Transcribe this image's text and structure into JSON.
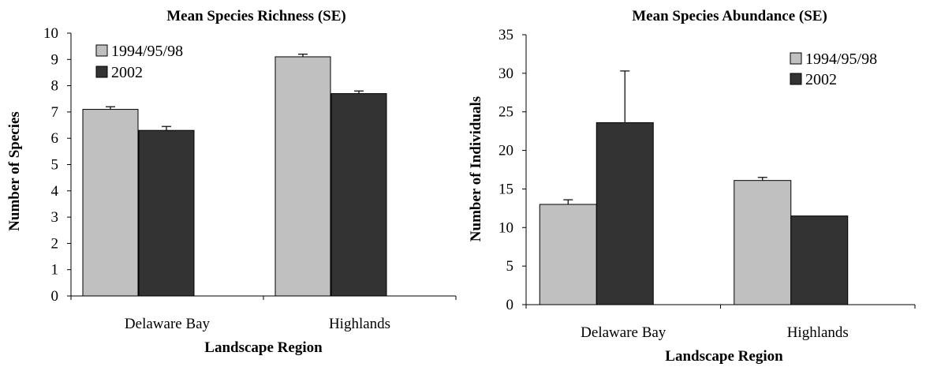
{
  "chart_data": [
    {
      "type": "bar",
      "title": "Mean Species Richness (SE)",
      "xlabel": "Landscape Region",
      "ylabel": "Number of Species",
      "categories": [
        "Delaware Bay",
        "Highlands"
      ],
      "ylim": [
        0,
        10
      ],
      "yticks": [
        0,
        1,
        2,
        3,
        4,
        5,
        6,
        7,
        8,
        9,
        10
      ],
      "legend_position": "top-left",
      "series": [
        {
          "name": "1994/95/98",
          "color": "#c0c0c0",
          "values": [
            7.1,
            9.1
          ],
          "errors": [
            0.1,
            0.1
          ]
        },
        {
          "name": "2002",
          "color": "#333333",
          "values": [
            6.3,
            7.7
          ],
          "errors": [
            0.15,
            0.1
          ]
        }
      ]
    },
    {
      "type": "bar",
      "title": "Mean Species Abundance (SE)",
      "xlabel": "Landscape Region",
      "ylabel": "Number of Individuals",
      "categories": [
        "Delaware Bay",
        "Highlands"
      ],
      "ylim": [
        0,
        35
      ],
      "yticks": [
        0,
        5,
        10,
        15,
        20,
        25,
        30,
        35
      ],
      "legend_position": "top-right",
      "series": [
        {
          "name": "1994/95/98",
          "color": "#c0c0c0",
          "values": [
            13.0,
            16.1
          ],
          "errors": [
            0.6,
            0.4
          ]
        },
        {
          "name": "2002",
          "color": "#333333",
          "values": [
            23.6,
            11.5
          ],
          "errors": [
            6.7,
            0
          ]
        }
      ]
    }
  ]
}
